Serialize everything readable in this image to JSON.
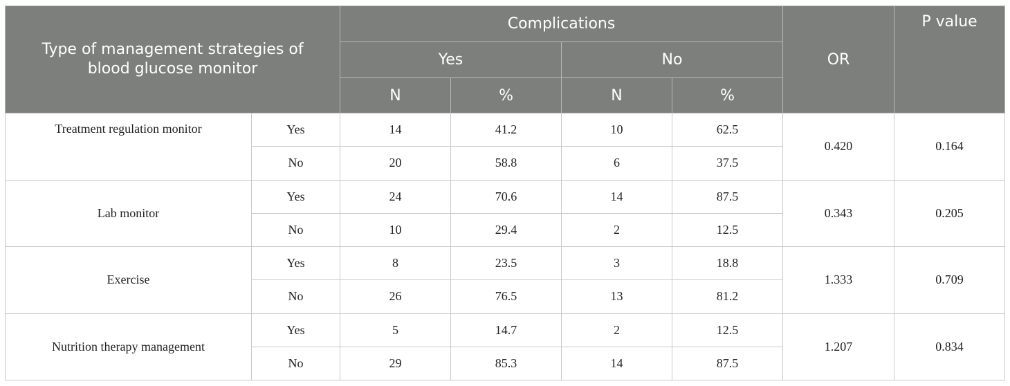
{
  "header": {
    "type_label": "Type of management strategies of blood glucose monitor",
    "complications": "Complications",
    "yes": "Yes",
    "no": "No",
    "n": "N",
    "pct": "%",
    "or": "OR",
    "p_value": "P value"
  },
  "groups": [
    {
      "strategy": "Treatment regulation monitor",
      "or": "0.420",
      "p": "0.164",
      "rows": [
        {
          "answer": "Yes",
          "yes_n": "14",
          "yes_pct": "41.2",
          "no_n": "10",
          "no_pct": "62.5"
        },
        {
          "answer": "No",
          "yes_n": "20",
          "yes_pct": "58.8",
          "no_n": "6",
          "no_pct": "37.5"
        }
      ]
    },
    {
      "strategy": "Lab monitor",
      "or": "0.343",
      "p": "0.205",
      "rows": [
        {
          "answer": "Yes",
          "yes_n": "24",
          "yes_pct": "70.6",
          "no_n": "14",
          "no_pct": "87.5"
        },
        {
          "answer": "No",
          "yes_n": "10",
          "yes_pct": "29.4",
          "no_n": "2",
          "no_pct": "12.5"
        }
      ]
    },
    {
      "strategy": "Exercise",
      "or": "1.333",
      "p": "0.709",
      "rows": [
        {
          "answer": "Yes",
          "yes_n": "8",
          "yes_pct": "23.5",
          "no_n": "3",
          "no_pct": "18.8"
        },
        {
          "answer": "No",
          "yes_n": "26",
          "yes_pct": "76.5",
          "no_n": "13",
          "no_pct": "81.2"
        }
      ]
    },
    {
      "strategy": "Nutrition therapy management",
      "or": "1.207",
      "p": "0.834",
      "rows": [
        {
          "answer": "Yes",
          "yes_n": "5",
          "yes_pct": "14.7",
          "no_n": "2",
          "no_pct": "12.5"
        },
        {
          "answer": "No",
          "yes_n": "29",
          "yes_pct": "85.3",
          "no_n": "14",
          "no_pct": "87.5"
        }
      ]
    }
  ]
}
